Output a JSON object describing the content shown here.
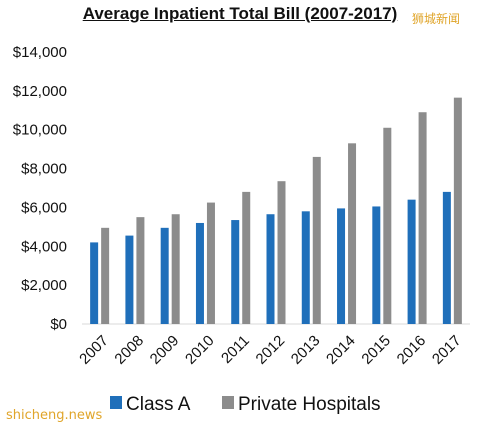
{
  "watermark_top": "狮城新闻",
  "watermark_bottom": "shicheng.news",
  "chart_data": {
    "type": "bar",
    "title": "Average Inpatient Total Bill (2007-2017)",
    "categories": [
      "2007",
      "2008",
      "2009",
      "2010",
      "2011",
      "2012",
      "2013",
      "2014",
      "2015",
      "2016",
      "2017"
    ],
    "series": [
      {
        "name": "Class A",
        "color": "#1f6fba",
        "values": [
          4200,
          4550,
          4950,
          5200,
          5350,
          5650,
          5800,
          5950,
          6050,
          6400,
          6800
        ]
      },
      {
        "name": "Private Hospitals",
        "color": "#8c8c8c",
        "values": [
          4950,
          5500,
          5650,
          6250,
          6800,
          7350,
          8600,
          9300,
          10100,
          10900,
          11650
        ]
      }
    ],
    "y_ticks": [
      "$0",
      "$2,000",
      "$4,000",
      "$6,000",
      "$8,000",
      "$10,000",
      "$12,000",
      "$14,000"
    ],
    "ylim": [
      0,
      14000
    ],
    "grid": false,
    "legend_position": "bottom"
  }
}
